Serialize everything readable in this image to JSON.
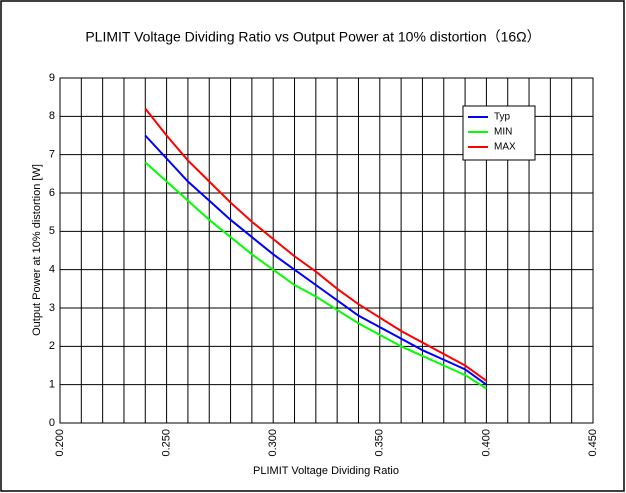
{
  "chart_data": {
    "type": "line",
    "title": "PLIMIT Voltage Dividing Ratio vs Output Power at 10% distortion（16Ω）",
    "x_label": "PLIMIT Voltage Dividing Ratio",
    "y_label": "Output Power at 10% distortion [W]",
    "x": [
      0.24,
      0.25,
      0.26,
      0.27,
      0.28,
      0.29,
      0.3,
      0.31,
      0.32,
      0.33,
      0.34,
      0.35,
      0.36,
      0.37,
      0.38,
      0.39,
      0.4
    ],
    "series": [
      {
        "name": "Typ",
        "color": "#0000ff",
        "values": [
          7.5,
          6.9,
          6.3,
          5.8,
          5.3,
          4.85,
          4.4,
          4.0,
          3.6,
          3.2,
          2.8,
          2.5,
          2.2,
          1.9,
          1.65,
          1.4,
          1.0
        ]
      },
      {
        "name": "MIN",
        "color": "#00ff00",
        "values": [
          6.8,
          6.3,
          5.8,
          5.3,
          4.85,
          4.4,
          4.0,
          3.6,
          3.3,
          2.95,
          2.6,
          2.3,
          2.0,
          1.75,
          1.5,
          1.25,
          0.9
        ]
      },
      {
        "name": "MAX",
        "color": "#ff0000",
        "values": [
          8.2,
          7.5,
          6.85,
          6.3,
          5.75,
          5.25,
          4.8,
          4.35,
          3.95,
          3.5,
          3.1,
          2.75,
          2.4,
          2.1,
          1.8,
          1.5,
          1.1
        ]
      }
    ],
    "xlim": [
      0.2,
      0.45
    ],
    "xticks": [
      {
        "value": 0.2,
        "label": "0.200"
      },
      {
        "value": 0.25,
        "label": "0.250"
      },
      {
        "value": 0.3,
        "label": "0.300"
      },
      {
        "value": 0.35,
        "label": "0.350"
      },
      {
        "value": 0.4,
        "label": "0.400"
      },
      {
        "value": 0.45,
        "label": "0.450"
      }
    ],
    "xminorticks": [
      0.21,
      0.22,
      0.23,
      0.24,
      0.26,
      0.27,
      0.28,
      0.29,
      0.31,
      0.32,
      0.33,
      0.34,
      0.36,
      0.37,
      0.38,
      0.39,
      0.41,
      0.42,
      0.43,
      0.44
    ],
    "ylim": [
      0,
      9
    ],
    "yticks": [
      0,
      1,
      2,
      3,
      4,
      5,
      6,
      7,
      8,
      9
    ],
    "grid": true,
    "legend": "upper right"
  }
}
